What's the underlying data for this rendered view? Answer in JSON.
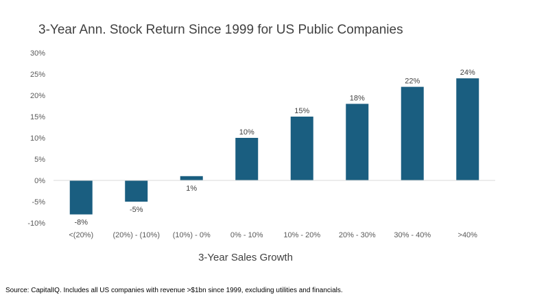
{
  "chart_data": {
    "type": "bar",
    "title": "3-Year Ann. Stock Return Since 1999 for US Public Companies",
    "xlabel": "3-Year Sales Growth",
    "ylabel": "",
    "categories": [
      "<(20%)",
      "(20%) - (10%)",
      "(10%) - 0%",
      "0% - 10%",
      "10% - 20%",
      "20% - 30%",
      "30% - 40%",
      ">40%"
    ],
    "values": [
      -8,
      -5,
      1,
      10,
      15,
      18,
      22,
      24
    ],
    "data_labels": [
      "-8%",
      "-5%",
      "1%",
      "10%",
      "15%",
      "18%",
      "22%",
      "24%"
    ],
    "ylim": [
      -10,
      30
    ],
    "yticks": [
      -10,
      -5,
      0,
      5,
      10,
      15,
      20,
      25,
      30
    ],
    "ytick_labels": [
      "-10%",
      "-5%",
      "0%",
      "5%",
      "10%",
      "15%",
      "20%",
      "25%",
      "30%"
    ],
    "grid": false,
    "legend": "none",
    "bar_color": "#1a5e80"
  },
  "footnote": "Source: CapitalIQ. Includes all US companies with revenue >$1bn since 1999, excluding utilities and financials."
}
